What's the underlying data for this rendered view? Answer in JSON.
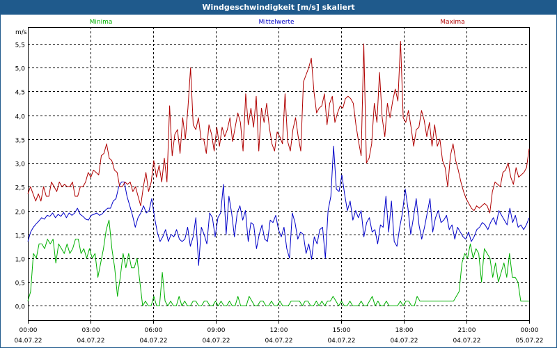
{
  "window": {
    "title": "Windgeschwindigkeit [m/s] skaliert"
  },
  "colors": {
    "titlebar": "#1f5a8c",
    "min": "#00b000",
    "mean": "#0000c8",
    "max": "#b00000",
    "grid": "#000000"
  },
  "chart_data": {
    "type": "line",
    "title": "Windgeschwindigkeit [m/s] skaliert",
    "ylabel": "m/s",
    "xlabel": "",
    "ylim": [
      -0.3,
      5.85
    ],
    "yticks": [
      0.0,
      0.5,
      1.0,
      1.5,
      2.0,
      2.5,
      3.0,
      3.5,
      4.0,
      4.5,
      5.0,
      5.5
    ],
    "ytick_labels": [
      "0,0",
      "0,5",
      "1,0",
      "1,5",
      "2,0",
      "2,5",
      "3,0",
      "3,5",
      "4,0",
      "4,5",
      "5,0",
      "5,5"
    ],
    "xlim_hours": [
      0,
      24
    ],
    "xticks": [
      {
        "hour": 0,
        "time": "00:00",
        "date": "04.07.22"
      },
      {
        "hour": 3,
        "time": "03:00",
        "date": "04.07.22"
      },
      {
        "hour": 6,
        "time": "06:00",
        "date": "04.07.22"
      },
      {
        "hour": 9,
        "time": "09:00",
        "date": "04.07.22"
      },
      {
        "hour": 12,
        "time": "12:00",
        "date": "04.07.22"
      },
      {
        "hour": 15,
        "time": "15:00",
        "date": "04.07.22"
      },
      {
        "hour": 18,
        "time": "18:00",
        "date": "04.07.22"
      },
      {
        "hour": 21,
        "time": "21:00",
        "date": "04.07.22"
      },
      {
        "hour": 24,
        "time": "00:00",
        "date": "05.07.22"
      }
    ],
    "grid": true,
    "legend": [
      {
        "name": "Minima",
        "color": "#00b000",
        "position": "left"
      },
      {
        "name": "Mittelwerte",
        "color": "#0000c8",
        "position": "center"
      },
      {
        "name": "Maxima",
        "color": "#b00000",
        "position": "right"
      }
    ],
    "x_step_hours": 0.1667,
    "series": [
      {
        "name": "Minima",
        "color": "#00b000",
        "values": [
          0.1,
          0.3,
          1.1,
          1.0,
          1.3,
          1.3,
          1.2,
          1.4,
          1.3,
          1.4,
          0.9,
          1.3,
          1.2,
          1.1,
          1.3,
          1.1,
          1.2,
          1.4,
          1.4,
          1.1,
          1.2,
          1.0,
          1.2,
          1.0,
          1.1,
          0.6,
          0.9,
          1.2,
          1.6,
          1.8,
          1.2,
          0.8,
          0.2,
          0.6,
          1.1,
          0.8,
          1.1,
          0.8,
          0.8,
          1.0,
          0.5,
          0.0,
          0.1,
          0.0,
          0.0,
          0.2,
          0.0,
          0.0,
          0.7,
          0.1,
          0.0,
          0.1,
          0.0,
          0.0,
          0.2,
          0.0,
          0.1,
          0.0,
          0.0,
          0.1,
          0.1,
          0.0,
          0.0,
          0.1,
          0.1,
          0.0,
          0.0,
          0.1,
          0.0,
          0.1,
          0.0,
          0.0,
          0.1,
          0.0,
          0.0,
          0.2,
          0.0,
          0.0,
          0.0,
          0.2,
          0.1,
          0.0,
          0.0,
          0.1,
          0.1,
          0.0,
          0.0,
          0.1,
          0.0,
          0.0,
          0.1,
          0.0,
          0.0,
          0.0,
          0.1,
          0.1,
          0.1,
          0.1,
          0.0,
          0.1,
          0.1,
          0.0,
          0.0,
          0.1,
          0.0,
          0.1,
          0.0,
          0.1,
          0.1,
          0.2,
          0.1,
          0.0,
          0.1,
          0.0,
          0.0,
          0.1,
          0.0,
          0.0,
          0.0,
          0.1,
          0.0,
          0.0,
          0.1,
          0.2,
          0.0,
          0.1,
          0.0,
          0.0,
          0.1,
          0.0,
          0.0,
          0.0,
          0.0,
          0.1,
          0.0,
          0.1,
          0.1,
          0.0,
          0.0,
          0.2,
          0.1,
          0.1,
          0.1,
          0.1,
          0.1,
          0.1,
          0.1,
          0.1,
          0.1,
          0.1,
          0.1,
          0.1,
          0.1,
          0.2,
          0.3,
          0.9,
          1.1,
          1.0,
          1.3,
          1.0,
          1.2,
          1.1,
          0.5,
          1.2,
          1.1,
          1.0,
          0.6,
          0.9,
          0.5,
          0.7,
          0.9,
          0.6,
          1.1,
          0.6,
          0.6,
          0.5,
          0.1,
          0.1,
          0.1,
          0.1
        ]
      },
      {
        "name": "Mittelwerte",
        "color": "#0000c8",
        "values": [
          1.35,
          1.55,
          1.65,
          1.72,
          1.78,
          1.85,
          1.82,
          1.9,
          1.88,
          1.95,
          1.85,
          1.92,
          1.88,
          1.96,
          1.85,
          1.95,
          1.9,
          1.95,
          2.05,
          1.92,
          1.88,
          1.82,
          1.8,
          1.9,
          1.92,
          1.95,
          1.9,
          1.93,
          2.0,
          2.05,
          2.05,
          2.2,
          2.25,
          2.5,
          2.6,
          2.6,
          2.3,
          2.1,
          1.9,
          1.65,
          1.85,
          1.95,
          2.1,
          1.95,
          2.0,
          2.25,
          1.85,
          1.55,
          1.35,
          1.45,
          1.6,
          1.35,
          1.5,
          1.45,
          1.6,
          1.4,
          1.35,
          1.4,
          1.65,
          1.25,
          1.45,
          1.85,
          0.85,
          1.65,
          1.5,
          1.3,
          1.95,
          1.85,
          1.45,
          1.85,
          1.95,
          2.55,
          1.5,
          2.3,
          1.95,
          1.45,
          1.95,
          2.1,
          1.8,
          2.0,
          1.35,
          1.75,
          1.7,
          1.2,
          1.5,
          1.7,
          1.4,
          1.35,
          1.8,
          1.75,
          1.9,
          1.6,
          1.45,
          1.65,
          1.2,
          1.0,
          1.95,
          1.75,
          1.4,
          1.55,
          1.5,
          1.1,
          1.3,
          0.98,
          1.45,
          1.3,
          1.6,
          1.65,
          1.0,
          2.0,
          2.3,
          3.35,
          2.45,
          2.4,
          2.75,
          2.35,
          2.0,
          2.2,
          1.8,
          2.0,
          1.85,
          2.0,
          1.45,
          1.75,
          1.85,
          1.55,
          1.6,
          1.3,
          1.7,
          1.65,
          2.3,
          1.55,
          2.2,
          1.35,
          1.25,
          1.65,
          1.95,
          2.45,
          2.05,
          1.5,
          1.85,
          2.25,
          1.7,
          1.4,
          1.65,
          1.95,
          2.25,
          1.55,
          1.85,
          2.0,
          1.75,
          1.8,
          1.9,
          1.6,
          1.7,
          1.4,
          1.65,
          1.55,
          1.45,
          1.4,
          1.55,
          1.35,
          1.45,
          1.6,
          1.65,
          1.75,
          1.7,
          1.6,
          1.75,
          1.85,
          1.7,
          2.0,
          1.9,
          1.8,
          1.7,
          2.05,
          1.75,
          1.9,
          1.65,
          1.7,
          1.6,
          1.7,
          1.85
        ]
      },
      {
        "name": "Maxima",
        "color": "#b00000",
        "values": [
          2.35,
          2.5,
          2.35,
          2.2,
          2.35,
          2.2,
          2.5,
          2.3,
          2.3,
          2.6,
          2.5,
          2.4,
          2.6,
          2.5,
          2.55,
          2.5,
          2.5,
          2.6,
          2.3,
          2.3,
          2.5,
          2.5,
          2.6,
          2.8,
          2.7,
          2.85,
          2.8,
          2.75,
          3.15,
          3.2,
          3.4,
          3.1,
          3.05,
          2.85,
          2.8,
          2.5,
          2.5,
          2.6,
          2.55,
          2.6,
          2.4,
          2.5,
          2.3,
          2.1,
          2.5,
          2.8,
          2.4,
          2.6,
          3.05,
          2.7,
          2.95,
          2.6,
          3.1,
          2.6,
          4.2,
          3.15,
          3.6,
          3.7,
          3.2,
          3.95,
          3.5,
          4.15,
          5.0,
          3.8,
          3.7,
          3.95,
          3.5,
          3.5,
          3.2,
          3.8,
          3.6,
          3.25,
          3.75,
          3.35,
          3.75,
          3.55,
          3.7,
          3.95,
          3.45,
          3.75,
          4.05,
          3.85,
          3.25,
          4.45,
          3.8,
          4.15,
          3.75,
          4.4,
          3.25,
          4.15,
          3.85,
          4.25,
          3.75,
          3.4,
          3.25,
          3.65,
          3.55,
          3.4,
          4.45,
          3.45,
          3.25,
          3.7,
          3.95,
          3.55,
          3.25,
          4.7,
          4.85,
          5.0,
          5.2,
          4.5,
          4.05,
          4.15,
          4.2,
          4.45,
          3.8,
          4.25,
          4.4,
          3.85,
          4.05,
          4.2,
          4.15,
          4.35,
          4.4,
          4.35,
          4.25,
          3.8,
          3.45,
          3.15,
          5.5,
          3.0,
          3.1,
          3.4,
          4.25,
          3.85,
          4.9,
          3.95,
          3.55,
          4.25,
          3.95,
          4.3,
          4.55,
          4.3,
          5.55,
          3.95,
          3.85,
          4.1,
          3.75,
          3.35,
          3.7,
          3.75,
          4.1,
          3.9,
          3.55,
          3.85,
          3.35,
          3.8,
          3.35,
          3.5,
          3.05,
          2.9,
          2.5,
          3.15,
          3.4,
          3.05,
          2.85,
          2.6,
          2.4,
          2.25,
          2.15,
          2.05,
          2.0,
          2.1,
          2.05,
          2.1,
          2.15,
          2.1,
          1.95,
          2.4,
          2.6,
          2.55,
          2.5,
          2.8,
          2.85,
          3.0,
          2.7,
          2.55,
          2.9,
          2.7,
          2.75,
          2.8,
          2.9,
          3.3
        ]
      }
    ]
  }
}
